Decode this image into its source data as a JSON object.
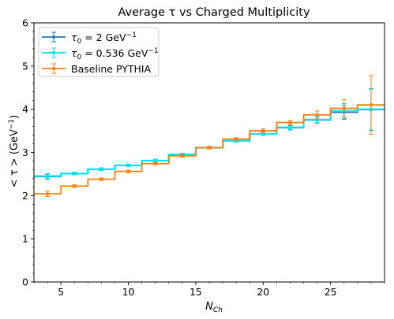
{
  "chart_data": {
    "type": "line",
    "drawstyle": "steps-mid",
    "title": "Average τ vs Charged Multiplicity",
    "xlabel": "N_Ch",
    "ylabel": "< τ > (GeV⁻¹)",
    "xlim": [
      3,
      29
    ],
    "ylim": [
      0,
      6
    ],
    "xticks": [
      5,
      10,
      15,
      20,
      25
    ],
    "yticks": [
      0,
      1,
      2,
      3,
      4,
      5,
      6
    ],
    "grid": false,
    "legend_position": "top-left",
    "x": [
      4,
      6,
      8,
      10,
      12,
      14,
      16,
      18,
      20,
      22,
      24,
      26,
      28
    ],
    "series": [
      {
        "name": "τ0 = 2 GeV⁻¹",
        "color": "#1f77b4",
        "values": [
          2.44,
          2.51,
          2.61,
          2.7,
          2.81,
          2.95,
          3.11,
          3.27,
          3.43,
          3.57,
          3.75,
          3.93,
          3.99
        ],
        "errors": [
          0.06,
          0.03,
          0.03,
          0.03,
          0.03,
          0.03,
          0.03,
          0.03,
          0.04,
          0.05,
          0.07,
          0.16,
          0.48
        ]
      },
      {
        "name": "τ0 = 0.536 GeV⁻¹",
        "color": "#00e5ee",
        "values": [
          2.45,
          2.51,
          2.61,
          2.7,
          2.81,
          2.95,
          3.11,
          3.27,
          3.43,
          3.58,
          3.76,
          3.96,
          4.0
        ],
        "errors": [
          0.06,
          0.03,
          0.03,
          0.03,
          0.03,
          0.03,
          0.03,
          0.03,
          0.04,
          0.05,
          0.07,
          0.17,
          0.48
        ]
      },
      {
        "name": "Baseline PYTHIA",
        "color": "#ff7f0e",
        "values": [
          2.04,
          2.22,
          2.38,
          2.56,
          2.74,
          2.92,
          3.11,
          3.31,
          3.5,
          3.69,
          3.87,
          4.02,
          4.1
        ],
        "errors": [
          0.06,
          0.03,
          0.03,
          0.03,
          0.03,
          0.03,
          0.03,
          0.03,
          0.04,
          0.05,
          0.09,
          0.2,
          0.68
        ]
      }
    ]
  }
}
